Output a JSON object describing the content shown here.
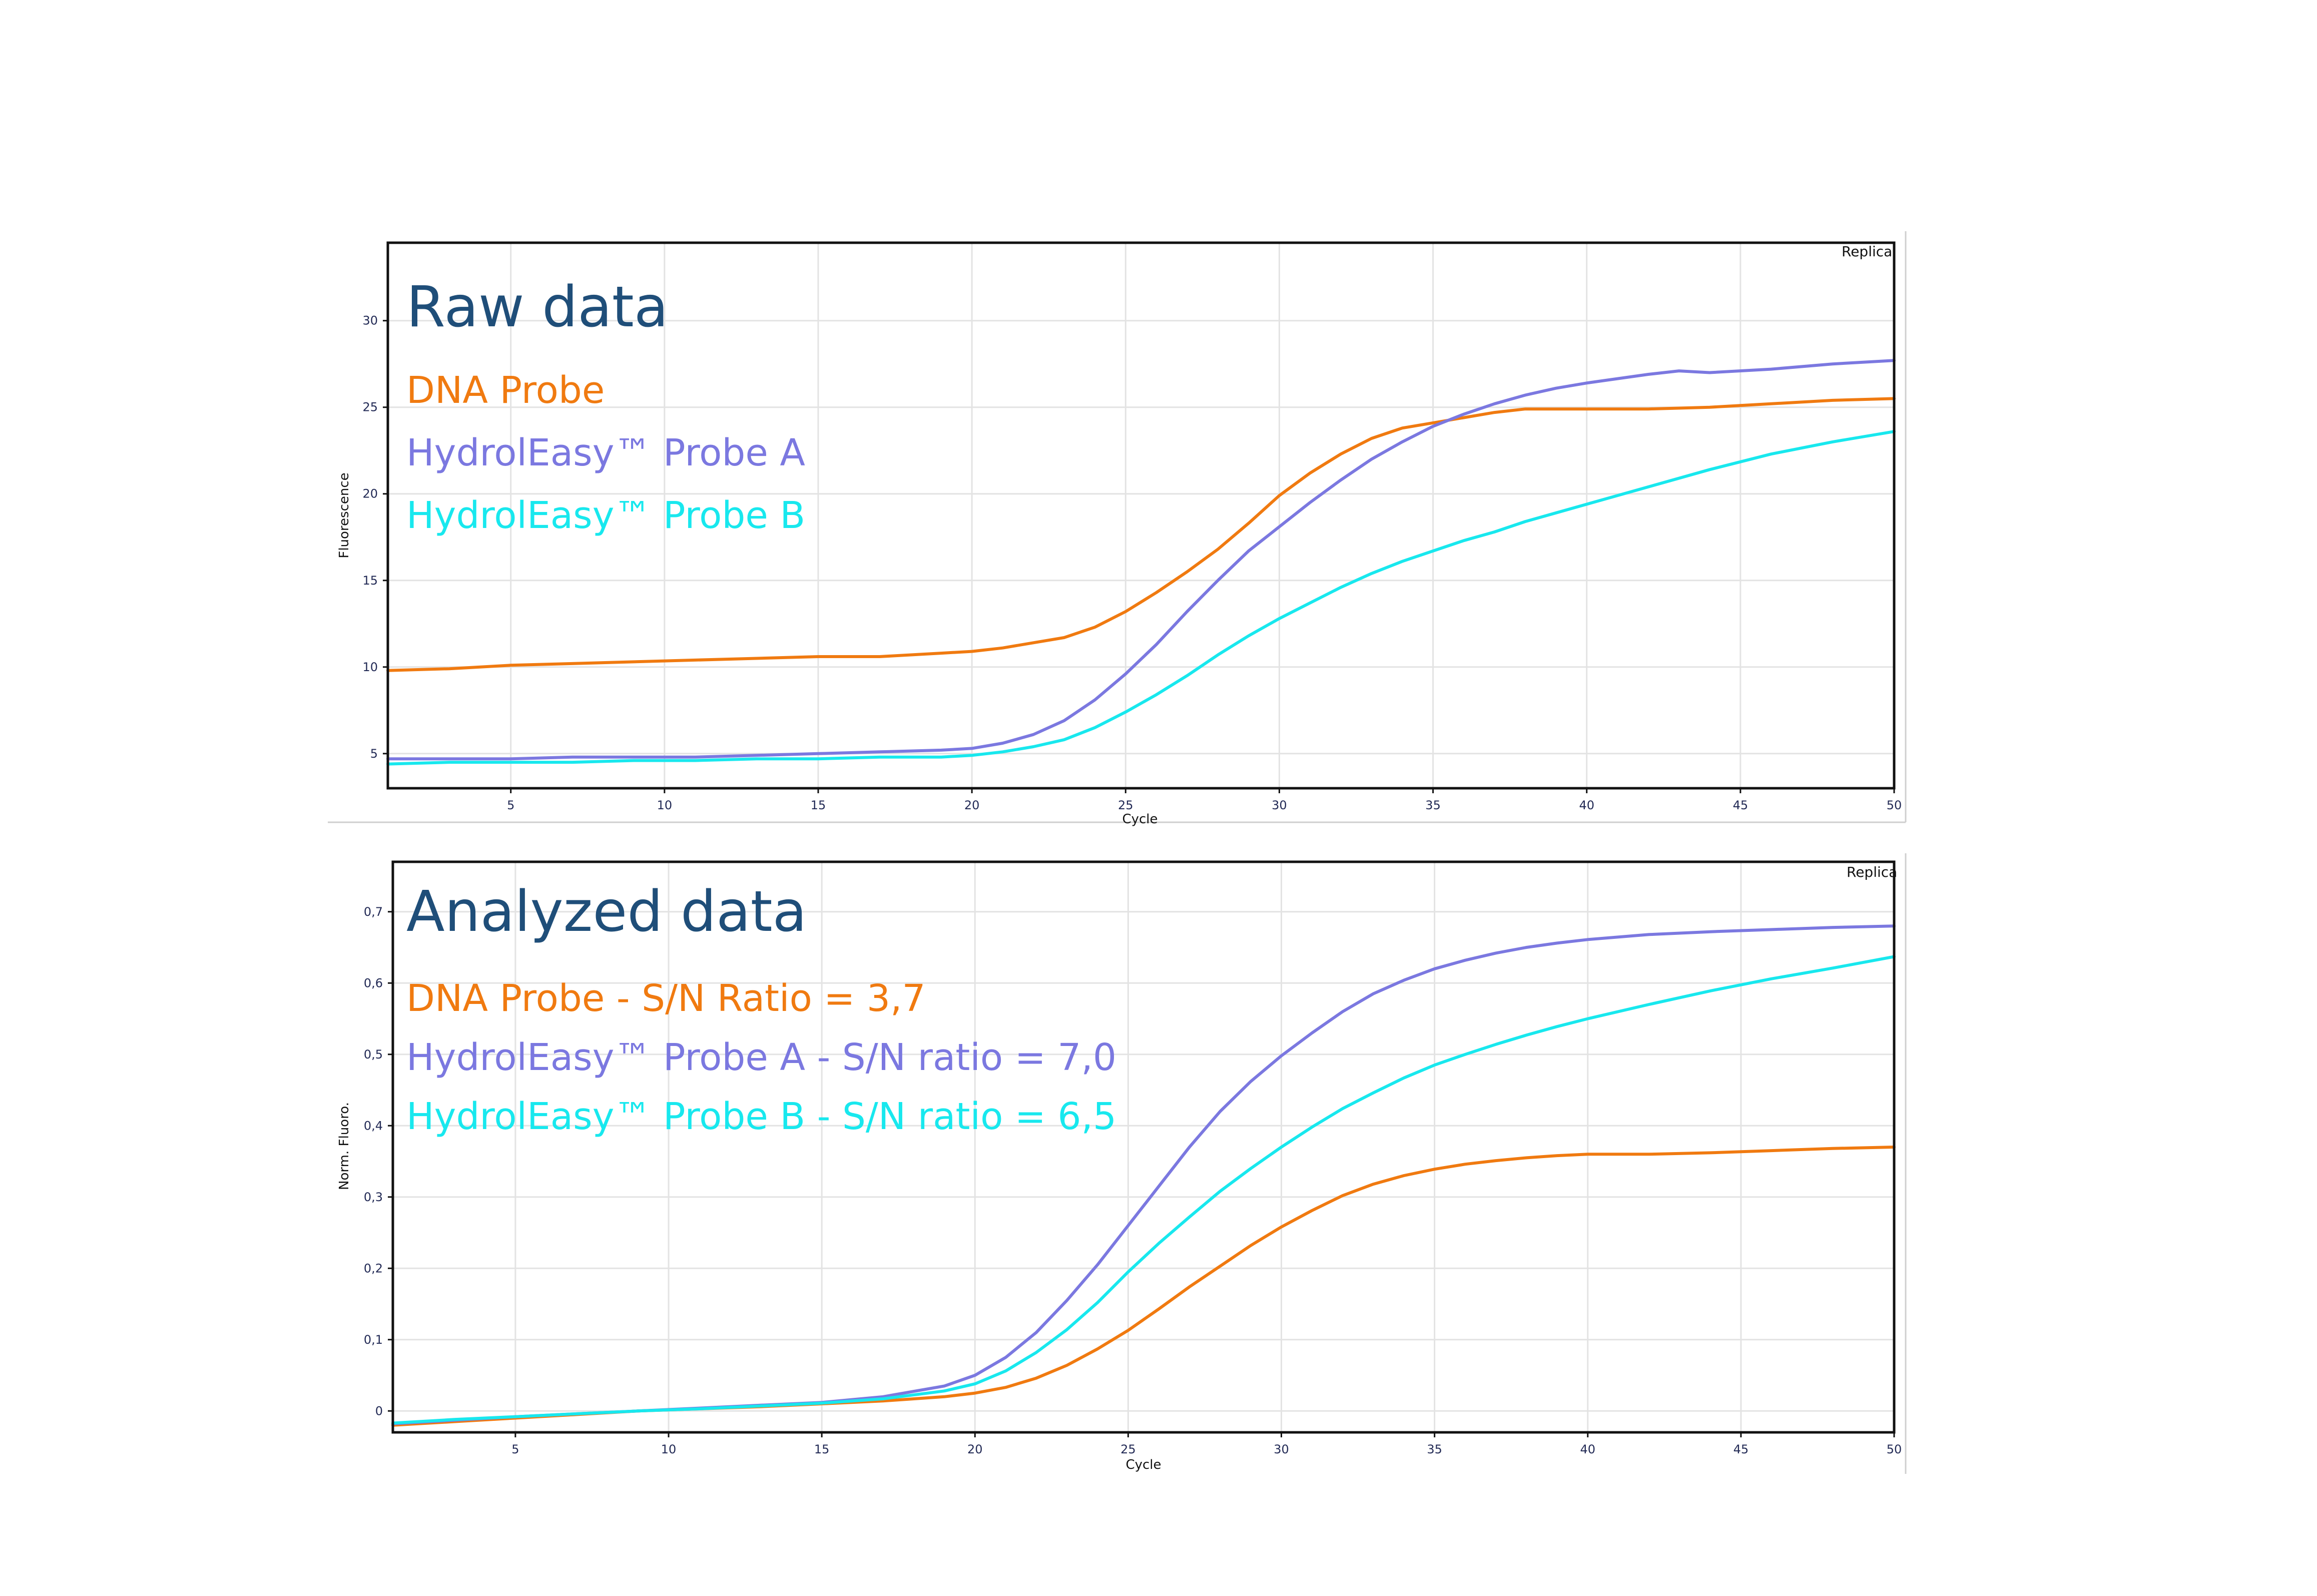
{
  "colors": {
    "dna_probe": "#f07a10",
    "probe_a": "#7b78e0",
    "probe_b": "#18e8ee",
    "title": "#1f4e79"
  },
  "chart_data": [
    {
      "type": "line",
      "title": "Raw data",
      "corner_label": "Replica",
      "xlabel": "Cycle",
      "ylabel": "Fluorescence",
      "xlim": [
        1,
        50
      ],
      "ylim": [
        3,
        34.5
      ],
      "x_ticks": [
        5,
        10,
        15,
        20,
        25,
        30,
        35,
        40,
        45,
        50
      ],
      "x_tick_labels": [
        "5",
        "10",
        "15",
        "20",
        "25",
        "30",
        "35",
        "40",
        "45",
        "50"
      ],
      "y_ticks": [
        5,
        10,
        15,
        20,
        25,
        30
      ],
      "y_tick_labels": [
        "5",
        "10",
        "15",
        "20",
        "25",
        "30"
      ],
      "grid": true,
      "series": [
        {
          "name": "DNA Probe",
          "color": "#f07a10",
          "x": [
            1,
            3,
            5,
            7,
            9,
            11,
            13,
            15,
            17,
            19,
            20,
            21,
            22,
            23,
            24,
            25,
            26,
            27,
            28,
            29,
            30,
            31,
            32,
            33,
            34,
            35,
            36,
            37,
            38,
            39,
            40,
            42,
            44,
            46,
            48,
            50
          ],
          "y": [
            9.8,
            9.9,
            10.1,
            10.2,
            10.3,
            10.4,
            10.5,
            10.6,
            10.6,
            10.8,
            10.9,
            11.1,
            11.4,
            11.7,
            12.3,
            13.2,
            14.3,
            15.5,
            16.8,
            18.3,
            19.9,
            21.2,
            22.3,
            23.2,
            23.8,
            24.1,
            24.4,
            24.7,
            24.9,
            24.9,
            24.9,
            24.9,
            25.0,
            25.2,
            25.4,
            25.5
          ]
        },
        {
          "name": "HydrolEasy™ Probe A",
          "color": "#7b78e0",
          "x": [
            1,
            3,
            5,
            7,
            9,
            11,
            13,
            15,
            17,
            19,
            20,
            21,
            22,
            23,
            24,
            25,
            26,
            27,
            28,
            29,
            30,
            31,
            32,
            33,
            34,
            35,
            36,
            37,
            38,
            39,
            40,
            42,
            43,
            44,
            46,
            48,
            50
          ],
          "y": [
            4.7,
            4.7,
            4.7,
            4.8,
            4.8,
            4.8,
            4.9,
            5.0,
            5.1,
            5.2,
            5.3,
            5.6,
            6.1,
            6.9,
            8.1,
            9.6,
            11.3,
            13.2,
            15.0,
            16.7,
            18.1,
            19.5,
            20.8,
            22.0,
            23.0,
            23.9,
            24.6,
            25.2,
            25.7,
            26.1,
            26.4,
            26.9,
            27.1,
            27.0,
            27.2,
            27.5,
            27.7
          ]
        },
        {
          "name": "HydrolEasy™ Probe B",
          "color": "#18e8ee",
          "x": [
            1,
            3,
            5,
            7,
            9,
            11,
            13,
            15,
            17,
            19,
            20,
            21,
            22,
            23,
            24,
            25,
            26,
            27,
            28,
            29,
            30,
            31,
            32,
            33,
            34,
            35,
            36,
            37,
            38,
            39,
            40,
            42,
            44,
            46,
            48,
            50
          ],
          "y": [
            4.4,
            4.5,
            4.5,
            4.5,
            4.6,
            4.6,
            4.7,
            4.7,
            4.8,
            4.8,
            4.9,
            5.1,
            5.4,
            5.8,
            6.5,
            7.4,
            8.4,
            9.5,
            10.7,
            11.8,
            12.8,
            13.7,
            14.6,
            15.4,
            16.1,
            16.7,
            17.3,
            17.8,
            18.4,
            18.9,
            19.4,
            20.4,
            21.4,
            22.3,
            23.0,
            23.6
          ]
        }
      ]
    },
    {
      "type": "line",
      "title": "Analyzed data",
      "corner_label": "Replica",
      "xlabel": "Cycle",
      "ylabel": "Norm. Fluoro.",
      "xlim": [
        1,
        50
      ],
      "ylim": [
        -0.03,
        0.77
      ],
      "x_ticks": [
        5,
        10,
        15,
        20,
        25,
        30,
        35,
        40,
        45,
        50
      ],
      "x_tick_labels": [
        "5",
        "10",
        "15",
        "20",
        "25",
        "30",
        "35",
        "40",
        "45",
        "50"
      ],
      "y_ticks": [
        0,
        0.1,
        0.2,
        0.3,
        0.4,
        0.5,
        0.6,
        0.7
      ],
      "y_tick_labels": [
        "0",
        "0,1",
        "0,2",
        "0,3",
        "0,4",
        "0,5",
        "0,6",
        "0,7"
      ],
      "grid": true,
      "series": [
        {
          "name": "DNA Probe - S/N Ratio = 3,7",
          "color": "#f07a10",
          "x": [
            1,
            3,
            5,
            7,
            9,
            11,
            13,
            15,
            17,
            19,
            20,
            21,
            22,
            23,
            24,
            25,
            26,
            27,
            28,
            29,
            30,
            31,
            32,
            33,
            34,
            35,
            36,
            37,
            38,
            39,
            40,
            42,
            44,
            46,
            48,
            50
          ],
          "y": [
            -0.02,
            -0.015,
            -0.01,
            -0.005,
            0.0,
            0.003,
            0.006,
            0.01,
            0.014,
            0.02,
            0.025,
            0.033,
            0.046,
            0.064,
            0.087,
            0.113,
            0.143,
            0.174,
            0.203,
            0.232,
            0.258,
            0.281,
            0.302,
            0.318,
            0.33,
            0.339,
            0.346,
            0.351,
            0.355,
            0.358,
            0.36,
            0.36,
            0.362,
            0.365,
            0.368,
            0.37
          ]
        },
        {
          "name": "HydrolEasy™ Probe A - S/N ratio = 7,0",
          "color": "#7b78e0",
          "x": [
            1,
            3,
            5,
            7,
            9,
            11,
            13,
            15,
            17,
            19,
            20,
            21,
            22,
            23,
            24,
            25,
            26,
            27,
            28,
            29,
            30,
            31,
            32,
            33,
            34,
            35,
            36,
            37,
            38,
            39,
            40,
            42,
            44,
            46,
            48,
            50
          ],
          "y": [
            -0.018,
            -0.013,
            -0.008,
            -0.004,
            0.0,
            0.004,
            0.008,
            0.012,
            0.02,
            0.035,
            0.05,
            0.075,
            0.11,
            0.155,
            0.205,
            0.26,
            0.315,
            0.37,
            0.42,
            0.462,
            0.498,
            0.53,
            0.56,
            0.585,
            0.604,
            0.62,
            0.632,
            0.642,
            0.65,
            0.656,
            0.661,
            0.668,
            0.672,
            0.675,
            0.678,
            0.68
          ]
        },
        {
          "name": "HydrolEasy™ Probe B - S/N ratio = 6,5",
          "color": "#18e8ee",
          "x": [
            1,
            3,
            5,
            7,
            9,
            11,
            13,
            15,
            17,
            19,
            20,
            21,
            22,
            23,
            24,
            25,
            26,
            27,
            28,
            29,
            30,
            31,
            32,
            33,
            34,
            35,
            36,
            37,
            38,
            39,
            40,
            42,
            44,
            46,
            48,
            50
          ],
          "y": [
            -0.017,
            -0.012,
            -0.008,
            -0.004,
            0.0,
            0.003,
            0.007,
            0.011,
            0.017,
            0.028,
            0.038,
            0.056,
            0.082,
            0.114,
            0.152,
            0.195,
            0.235,
            0.272,
            0.308,
            0.34,
            0.37,
            0.398,
            0.424,
            0.446,
            0.467,
            0.485,
            0.5,
            0.514,
            0.527,
            0.539,
            0.55,
            0.57,
            0.589,
            0.606,
            0.621,
            0.637
          ]
        }
      ]
    }
  ]
}
